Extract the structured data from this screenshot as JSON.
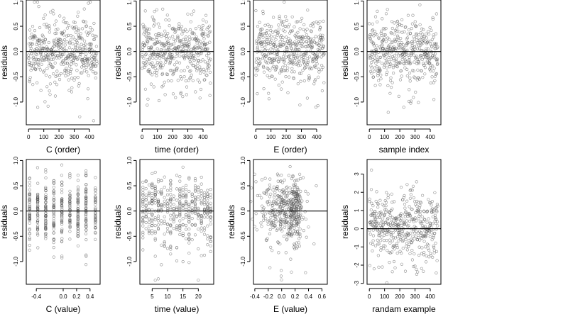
{
  "figure": {
    "background": "#ffffff",
    "point_color": "#555555",
    "line_color": "#000000"
  },
  "chart_data": [
    {
      "type": "scatter",
      "title": "",
      "xlabel": "C (order)",
      "ylabel": "residuals",
      "xlim": [
        -15,
        470
      ],
      "ylim": [
        -1.45,
        1.02
      ],
      "xticks": [
        0,
        100,
        200,
        300,
        400
      ],
      "xtick_labels": [
        "0",
        "100",
        "200",
        "300",
        "400"
      ],
      "yticks": [
        -1.0,
        -0.5,
        0.0,
        0.5,
        1.0
      ],
      "ytick_labels": [
        "-1.0",
        "-0.5",
        "0.0",
        "0.5",
        "1.0"
      ],
      "hline": 0,
      "n_points": 450,
      "x_kind": "index",
      "seed": 11
    },
    {
      "type": "scatter",
      "title": "",
      "xlabel": "time (order)",
      "ylabel": "residuals",
      "xlim": [
        -15,
        470
      ],
      "ylim": [
        -1.45,
        1.02
      ],
      "xticks": [
        0,
        100,
        200,
        300,
        400
      ],
      "xtick_labels": [
        "0",
        "100",
        "200",
        "300",
        "400"
      ],
      "yticks": [
        -1.0,
        -0.5,
        0.0,
        0.5,
        1.0
      ],
      "ytick_labels": [
        "-1.0",
        "-0.5",
        "0.0",
        "0.5",
        "1.0"
      ],
      "hline": 0,
      "n_points": 450,
      "x_kind": "index",
      "seed": 23
    },
    {
      "type": "scatter",
      "title": "",
      "xlabel": "E (order)",
      "ylabel": "residuals",
      "xlim": [
        -15,
        470
      ],
      "ylim": [
        -1.45,
        1.02
      ],
      "xticks": [
        0,
        100,
        200,
        300,
        400
      ],
      "xtick_labels": [
        "0",
        "100",
        "200",
        "300",
        "400"
      ],
      "yticks": [
        -1.0,
        -0.5,
        0.0,
        0.5,
        1.0
      ],
      "ytick_labels": [
        "-1.0",
        "-0.5",
        "0.0",
        "0.5",
        "1.0"
      ],
      "hline": 0,
      "n_points": 450,
      "x_kind": "index",
      "seed": 37
    },
    {
      "type": "scatter",
      "title": "",
      "xlabel": "sample index",
      "ylabel": "residuals",
      "xlim": [
        -15,
        470
      ],
      "ylim": [
        -1.45,
        1.02
      ],
      "xticks": [
        0,
        100,
        200,
        300,
        400
      ],
      "xtick_labels": [
        "0",
        "100",
        "200",
        "300",
        "400"
      ],
      "yticks": [
        -1.0,
        -0.5,
        0.0,
        0.5,
        1.0
      ],
      "ytick_labels": [
        "-1.0",
        "-0.5",
        "0.0",
        "0.5",
        "1.0"
      ],
      "hline": 0,
      "n_points": 450,
      "x_kind": "index",
      "seed": 41
    },
    {
      "type": "scatter",
      "title": "",
      "xlabel": "C (value)",
      "ylabel": "residuals",
      "xlim": [
        -0.55,
        0.55
      ],
      "ylim": [
        -1.45,
        1.02
      ],
      "xticks": [
        -0.4,
        0.0,
        0.2,
        0.4
      ],
      "xtick_labels": [
        "-0.4",
        "0.0",
        "0.2",
        "0.4"
      ],
      "yticks": [
        -1.0,
        -0.5,
        0.0,
        0.5,
        1.0
      ],
      "ytick_labels": [
        "-1.0",
        "-0.5",
        "0.0",
        "0.5",
        "1.0"
      ],
      "hline": 0,
      "n_points": 450,
      "x_kind": "discrete",
      "x_levels": [
        -0.5,
        -0.38,
        -0.26,
        -0.14,
        -0.02,
        0.1,
        0.22,
        0.34,
        0.48
      ],
      "seed": 53
    },
    {
      "type": "scatter",
      "title": "",
      "xlabel": "time (value)",
      "ylabel": "residuals",
      "xlim": [
        1,
        25
      ],
      "ylim": [
        -1.45,
        1.02
      ],
      "xticks": [
        5,
        10,
        15,
        20
      ],
      "xtick_labels": [
        "5",
        "10",
        "15",
        "20"
      ],
      "yticks": [
        -1.0,
        -0.5,
        0.0,
        0.5,
        1.0
      ],
      "ytick_labels": [
        "-1.0",
        "-0.5",
        "0.0",
        "0.5",
        "1.0"
      ],
      "hline": 0,
      "n_points": 450,
      "x_kind": "discrete",
      "x_levels": [
        2,
        3,
        4,
        5,
        6,
        7,
        8,
        9,
        10,
        11,
        12,
        13,
        14,
        15,
        16,
        17,
        18,
        19,
        20,
        21,
        22,
        23,
        24
      ],
      "seed": 67
    },
    {
      "type": "scatter",
      "title": "",
      "xlabel": "E (value)",
      "ylabel": "residuals",
      "xlim": [
        -0.42,
        0.68
      ],
      "ylim": [
        -1.45,
        1.02
      ],
      "xticks": [
        -0.4,
        -0.2,
        0.0,
        0.2,
        0.4,
        0.6
      ],
      "xtick_labels": [
        "-0.4",
        "-0.2",
        "0.0",
        "0.2",
        "0.4",
        "0.6"
      ],
      "yticks": [
        -1.0,
        -0.5,
        0.0,
        0.5,
        1.0
      ],
      "ytick_labels": [
        "-1.0",
        "-0.5",
        "0.0",
        "0.5",
        "1.0"
      ],
      "hline": 0,
      "n_points": 450,
      "x_kind": "clustered",
      "seed": 79
    },
    {
      "type": "scatter",
      "title": "",
      "xlabel": "randam example",
      "ylabel": "residuals",
      "xlim": [
        -15,
        470
      ],
      "ylim": [
        -3.05,
        3.8
      ],
      "xticks": [
        0,
        100,
        200,
        300,
        400
      ],
      "xtick_labels": [
        "0",
        "100",
        "200",
        "300",
        "400"
      ],
      "yticks": [
        -3,
        -2,
        -1,
        0,
        1,
        2,
        3
      ],
      "ytick_labels": [
        "-3",
        "-2",
        "-1",
        "0",
        "1",
        "2",
        "3"
      ],
      "hline": 0,
      "n_points": 450,
      "x_kind": "index",
      "seed": 97
    }
  ]
}
